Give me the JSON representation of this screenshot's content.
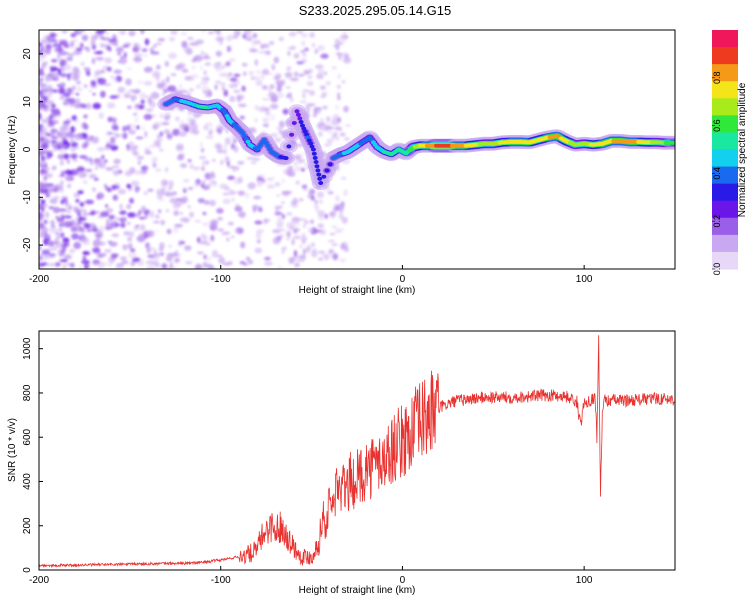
{
  "figure": {
    "title": "S233.2025.295.05.14.G15"
  },
  "chart_data": [
    {
      "type": "heatmap",
      "name": "spectrogram",
      "xlabel": "Height of straight line (km)",
      "ylabel": "Frequency (Hz)",
      "xlim": [
        -200,
        150
      ],
      "ylim": [
        -25,
        25
      ],
      "xticks": [
        -200,
        -100,
        0,
        100
      ],
      "yticks": [
        -20,
        -10,
        0,
        10,
        20
      ],
      "colorbar": {
        "label": "Normalized spectral amplitude",
        "range": [
          0,
          1
        ],
        "ticks": [
          "0.0",
          "0.2",
          "0.4",
          "0.6",
          "0.8"
        ],
        "colors": [
          "#e8d8f8",
          "#c8a8f0",
          "#9a5ee8",
          "#6a16e8",
          "#2a1ae8",
          "#1a6af0",
          "#12d0ee",
          "#1ae8a0",
          "#30e83a",
          "#a8ea1a",
          "#f4e41a",
          "#f49a18",
          "#ee3a1e",
          "#f0185a"
        ]
      },
      "main_track": [
        {
          "x": -130,
          "f": 9.5,
          "a": 0.35
        },
        {
          "x": -125,
          "f": 10.5,
          "a": 0.4
        },
        {
          "x": -118,
          "f": 9.8,
          "a": 0.45
        },
        {
          "x": -112,
          "f": 9.0,
          "a": 0.5
        },
        {
          "x": -107,
          "f": 8.8,
          "a": 0.5
        },
        {
          "x": -102,
          "f": 9.2,
          "a": 0.45
        },
        {
          "x": -98,
          "f": 8.0,
          "a": 0.4
        },
        {
          "x": -95,
          "f": 6.0,
          "a": 0.45
        },
        {
          "x": -92,
          "f": 5.0,
          "a": 0.4
        },
        {
          "x": -88,
          "f": 3.5,
          "a": 0.35
        },
        {
          "x": -84,
          "f": 1.0,
          "a": 0.45
        },
        {
          "x": -80,
          "f": 0.0,
          "a": 0.4
        },
        {
          "x": -76,
          "f": 2.0,
          "a": 0.35
        },
        {
          "x": -72,
          "f": -0.5,
          "a": 0.35
        },
        {
          "x": -68,
          "f": -1.5,
          "a": 0.35
        },
        {
          "x": -64,
          "f": -1.8,
          "a": 0.3
        },
        {
          "x": -58,
          "f": 8.0,
          "a": 0.2
        },
        {
          "x": -55,
          "f": 5.0,
          "a": 0.3
        },
        {
          "x": -52,
          "f": 2.5,
          "a": 0.35
        },
        {
          "x": -49,
          "f": 0.0,
          "a": 0.3
        },
        {
          "x": -47,
          "f": -3.5,
          "a": 0.3
        },
        {
          "x": -45,
          "f": -7.0,
          "a": 0.3
        },
        {
          "x": -38,
          "f": -1.8,
          "a": 0.35
        },
        {
          "x": -34,
          "f": -1.0,
          "a": 0.4
        },
        {
          "x": -30,
          "f": -0.5,
          "a": 0.45
        },
        {
          "x": -26,
          "f": 0.5,
          "a": 0.45
        },
        {
          "x": -22,
          "f": 1.5,
          "a": 0.4
        },
        {
          "x": -18,
          "f": 2.5,
          "a": 0.4
        },
        {
          "x": -14,
          "f": 0.5,
          "a": 0.45
        },
        {
          "x": -10,
          "f": -0.5,
          "a": 0.5
        },
        {
          "x": -6,
          "f": -1.0,
          "a": 0.5
        },
        {
          "x": -2,
          "f": 0.0,
          "a": 0.55
        },
        {
          "x": 2,
          "f": -0.8,
          "a": 0.55
        },
        {
          "x": 6,
          "f": 0.5,
          "a": 0.65
        },
        {
          "x": 10,
          "f": 0.8,
          "a": 0.75
        },
        {
          "x": 15,
          "f": 0.8,
          "a": 0.85
        },
        {
          "x": 20,
          "f": 0.8,
          "a": 0.9
        },
        {
          "x": 25,
          "f": 0.8,
          "a": 0.9
        },
        {
          "x": 30,
          "f": 0.8,
          "a": 0.85
        },
        {
          "x": 35,
          "f": 0.8,
          "a": 0.8
        },
        {
          "x": 40,
          "f": 1.0,
          "a": 0.75
        },
        {
          "x": 45,
          "f": 1.2,
          "a": 0.7
        },
        {
          "x": 50,
          "f": 1.2,
          "a": 0.7
        },
        {
          "x": 55,
          "f": 1.5,
          "a": 0.75
        },
        {
          "x": 60,
          "f": 1.6,
          "a": 0.8
        },
        {
          "x": 65,
          "f": 1.6,
          "a": 0.8
        },
        {
          "x": 70,
          "f": 1.5,
          "a": 0.8
        },
        {
          "x": 75,
          "f": 2.0,
          "a": 0.75
        },
        {
          "x": 80,
          "f": 2.5,
          "a": 0.8
        },
        {
          "x": 85,
          "f": 2.8,
          "a": 0.85
        },
        {
          "x": 90,
          "f": 1.8,
          "a": 0.75
        },
        {
          "x": 95,
          "f": 1.0,
          "a": 0.7
        },
        {
          "x": 100,
          "f": 1.2,
          "a": 0.7
        },
        {
          "x": 105,
          "f": 1.0,
          "a": 0.75
        },
        {
          "x": 110,
          "f": 1.2,
          "a": 0.8
        },
        {
          "x": 115,
          "f": 1.8,
          "a": 0.8
        },
        {
          "x": 120,
          "f": 1.8,
          "a": 0.85
        },
        {
          "x": 125,
          "f": 1.6,
          "a": 0.85
        },
        {
          "x": 130,
          "f": 1.6,
          "a": 0.8
        },
        {
          "x": 135,
          "f": 1.5,
          "a": 0.75
        },
        {
          "x": 140,
          "f": 1.5,
          "a": 0.7
        },
        {
          "x": 145,
          "f": 1.4,
          "a": 0.65
        },
        {
          "x": 150,
          "f": 1.4,
          "a": 0.6
        }
      ]
    },
    {
      "type": "line",
      "name": "snr",
      "xlabel": "Height of straight line (km)",
      "ylabel": "SNR (10 * v/v)",
      "xlim": [
        -200,
        150
      ],
      "ylim": [
        0,
        1080
      ],
      "xticks": [
        -200,
        -100,
        0,
        100
      ],
      "yticks": [
        0,
        200,
        400,
        600,
        800,
        1000
      ],
      "series": [
        {
          "name": "SNR",
          "color": "#e8322f",
          "x": [
            -200,
            -180,
            -160,
            -140,
            -120,
            -110,
            -100,
            -90,
            -85,
            -80,
            -78,
            -75,
            -72,
            -70,
            -68,
            -65,
            -62,
            -60,
            -58,
            -55,
            -50,
            -46,
            -44,
            -42,
            -40,
            -38,
            -36,
            -34,
            -32,
            -30,
            -28,
            -26,
            -24,
            -22,
            -20,
            -18,
            -16,
            -14,
            -12,
            -10,
            -8,
            -6,
            -4,
            -2,
            0,
            2,
            4,
            6,
            8,
            10,
            12,
            14,
            16,
            18,
            20,
            22,
            25,
            28,
            30,
            35,
            40,
            45,
            50,
            60,
            70,
            80,
            90,
            96,
            98,
            100,
            104,
            106,
            107,
            108,
            109,
            110,
            111,
            112,
            115,
            120,
            130,
            140,
            150
          ],
          "y": [
            20,
            22,
            25,
            28,
            30,
            35,
            45,
            60,
            70,
            90,
            140,
            180,
            200,
            170,
            200,
            180,
            130,
            110,
            80,
            60,
            60,
            120,
            250,
            200,
            320,
            280,
            400,
            340,
            380,
            370,
            420,
            380,
            440,
            420,
            470,
            450,
            480,
            470,
            500,
            490,
            520,
            540,
            560,
            570,
            580,
            600,
            610,
            640,
            650,
            670,
            680,
            700,
            710,
            720,
            730,
            740,
            750,
            760,
            765,
            770,
            775,
            780,
            780,
            780,
            785,
            790,
            785,
            760,
            650,
            760,
            770,
            780,
            600,
            1040,
            350,
            700,
            780,
            760,
            770,
            765,
            770,
            775,
            770
          ]
        }
      ]
    }
  ]
}
